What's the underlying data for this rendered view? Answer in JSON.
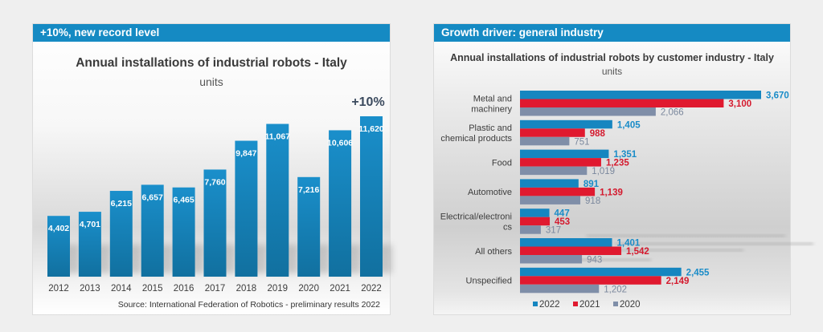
{
  "left_panel": {
    "header": "+10%, new record level",
    "source": "Source: International Federation of Robotics - preliminary results 2022"
  },
  "right_panel": {
    "header": "Growth driver: general industry"
  },
  "colors": {
    "header_blue": "#158ac3",
    "bar_blue": "#1686c0",
    "series_2022": "#1686c0",
    "series_2021": "#e0192f",
    "series_2020": "#7f8ea8",
    "label_2022": "#1a8cc8",
    "label_2021": "#d41a2e",
    "label_2020": "#7b889d"
  },
  "chart_data": [
    {
      "type": "bar",
      "title": "Annual installations of industrial robots - Italy",
      "subtitle": "units",
      "annotation": "+10%",
      "categories": [
        "2012",
        "2013",
        "2014",
        "2015",
        "2016",
        "2017",
        "2018",
        "2019",
        "2020",
        "2021",
        "2022"
      ],
      "values": [
        4402,
        4701,
        6215,
        6657,
        6465,
        7760,
        9847,
        11067,
        7216,
        10606,
        11620
      ],
      "labels": [
        "4,402",
        "4,701",
        "6,215",
        "6,657",
        "6,465",
        "7,760",
        "9,847",
        "11,067",
        "7,216",
        "10,606",
        "11,620"
      ],
      "xlabel": "",
      "ylabel": "units",
      "ylim": [
        0,
        12000
      ],
      "grid": false
    },
    {
      "type": "bar",
      "orientation": "horizontal",
      "title": "Annual installations of industrial robots by customer industry - Italy",
      "subtitle": "units",
      "categories": [
        [
          "Metal and",
          "machinery"
        ],
        [
          "Plastic and",
          "chemical products"
        ],
        [
          "Food"
        ],
        [
          "Automotive"
        ],
        [
          "Electrical/electroni",
          "cs"
        ],
        [
          "All others"
        ],
        [
          "Unspecified"
        ]
      ],
      "series": [
        {
          "name": "2022",
          "values": [
            3670,
            1405,
            1351,
            891,
            447,
            1401,
            2455
          ],
          "labels": [
            "3,670",
            "1,405",
            "1,351",
            "891",
            "447",
            "1,401",
            "2,455"
          ]
        },
        {
          "name": "2021",
          "values": [
            3100,
            988,
            1235,
            1139,
            453,
            1542,
            2149
          ],
          "labels": [
            "3,100",
            "988",
            "1,235",
            "1,139",
            "453",
            "1,542",
            "2,149"
          ]
        },
        {
          "name": "2020",
          "values": [
            2066,
            751,
            1019,
            918,
            317,
            943,
            1202
          ],
          "labels": [
            "2,066",
            "751",
            "1,019",
            "918",
            "317",
            "943",
            "1,202"
          ]
        }
      ],
      "xlim": [
        0,
        3700
      ],
      "legend": "bottom",
      "grid": false
    }
  ]
}
